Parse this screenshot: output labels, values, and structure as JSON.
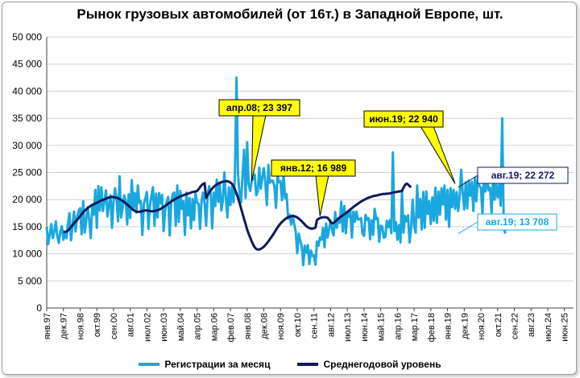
{
  "chart_data": {
    "type": "line",
    "title": "Рынок грузовых автомобилей (от 16т.) в Западной Европе, шт.",
    "ylim": [
      0,
      50000
    ],
    "y_ticks": [
      "0",
      "5 000",
      "10 000",
      "15 000",
      "20 000",
      "25 000",
      "30 000",
      "35 000",
      "40 000",
      "45 000",
      "50 000"
    ],
    "x_start": "1997-01",
    "x_end": "2025-12",
    "x_tick_labels": [
      "янв.97",
      "дек.97",
      "ноя.98",
      "окт.99",
      "сен.00",
      "авг.01",
      "июл.02",
      "июн.03",
      "май.04",
      "апр.05",
      "мар.06",
      "фев.07",
      "янв.08",
      "дек.08",
      "ноя.09",
      "окт.10",
      "сен.11",
      "авг.12",
      "июл.13",
      "июн.14",
      "май.15",
      "апр.16",
      "мар.17",
      "фев.18",
      "янв.19",
      "дек.19",
      "ноя.20",
      "окт.21",
      "сен.22",
      "авг.23",
      "июл.24",
      "июн.25"
    ],
    "grid": true,
    "legend_position": "bottom",
    "series": [
      {
        "name": "Регистрации за месяц",
        "color": "#1aa7e0",
        "start": "1997-01",
        "values": [
          15000,
          11800,
          13500,
          15500,
          12900,
          14100,
          16000,
          13200,
          12000,
          14200,
          15100,
          12600,
          13900,
          12900,
          15600,
          17500,
          12500,
          15200,
          17800,
          14100,
          16800,
          17900,
          18400,
          13600,
          19700,
          13900,
          16200,
          18600,
          16200,
          12900,
          19100,
          17200,
          21800,
          14800,
          22500,
          18000,
          22300,
          17900,
          19800,
          21700,
          16900,
          19100,
          20800,
          14800,
          19700,
          22100,
          20000,
          16000,
          24300,
          16700,
          18400,
          20800,
          19800,
          15400,
          21000,
          16600,
          23600,
          18500,
          21200,
          17600,
          22600,
          19400,
          19700,
          13500,
          19200,
          20300,
          21400,
          14600,
          18900,
          20700,
          22300,
          15200,
          21100,
          16700,
          21200,
          19300,
          20900,
          14200,
          18000,
          19600,
          20500,
          13400,
          19400,
          21000,
          21300,
          15200,
          22600,
          15900,
          21600,
          18300,
          19700,
          13500,
          21300,
          17100,
          20300,
          14700,
          20100,
          16200,
          21200,
          19500,
          19200,
          14600,
          19800,
          21300,
          19300,
          15200,
          20800,
          22500,
          21200,
          14700,
          21300,
          18800,
          23700,
          19600,
          23000,
          18000,
          19800,
          25000,
          20400,
          16700,
          22300,
          19000,
          22400,
          19500,
          24800,
          42500,
          24700,
          21000,
          19500,
          24600,
          29200,
          20300,
          30600,
          22900,
          21600,
          23400,
          23900,
          24600,
          20800,
          21500,
          25900,
          22000,
          24100,
          25800,
          23100,
          19000,
          26400,
          23100,
          23500,
          23500,
          22400,
          18500,
          24500,
          23200,
          23400,
          19900,
          24600,
          20300,
          21000,
          16500,
          17200,
          15400,
          17100,
          15500,
          14100,
          10100,
          13700,
          12400,
          11400,
          7900,
          11500,
          10200,
          11600,
          8100,
          10600,
          9600,
          9700,
          8000,
          12300,
          11500,
          13000,
          12600,
          14800,
          11200,
          15600,
          13000,
          14600,
          16100,
          14300,
          13400,
          17700,
          14800,
          16600,
          15700,
          19600,
          14100,
          18800,
          13800,
          17600,
          16800,
          18000,
          13000,
          17800,
          15900,
          17800,
          16300,
          16400,
          16600,
          13800,
          13300,
          17200,
          16300,
          16600,
          12700,
          16200,
          13500,
          18300,
          16400,
          16600,
          12200,
          15200,
          15000,
          13000,
          13100,
          16100,
          14900,
          16200,
          13800,
          28700,
          14200,
          15800,
          12600,
          15300,
          12100,
          21500,
          13900,
          17000,
          16000,
          17100,
          12100,
          14700,
          20000,
          15200,
          13900,
          22600,
          16700,
          20100,
          14500,
          21400,
          14800,
          21500,
          17400,
          19700,
          15500,
          20400,
          16100,
          22200,
          15700,
          21500,
          17200,
          22100,
          19100,
          22600,
          16300,
          21800,
          15000,
          22100,
          18600,
          21800,
          18300,
          21400,
          17900,
          20700,
          25500,
          21300,
          18200,
          23200,
          18400,
          23500,
          20700,
          23300,
          17900,
          24000,
          19700,
          24200,
          22500,
          22200,
          17300,
          25100,
          21500,
          24500,
          21700,
          22200,
          17600,
          23500,
          20000,
          23000,
          20400,
          22700,
          18900,
          35000,
          15300,
          13708
        ]
      },
      {
        "name": "Среднегодовой уровень",
        "color": "#0e1a5c",
        "start": "1997-12",
        "values": [
          14100,
          14050,
          14100,
          14300,
          14600,
          14950,
          15300,
          15650,
          15950,
          16250,
          16600,
          16950,
          17300,
          17650,
          17950,
          18200,
          18450,
          18650,
          18850,
          19000,
          19150,
          19300,
          19400,
          19550,
          19700,
          19850,
          19950,
          20050,
          20150,
          20300,
          20400,
          20450,
          20500,
          20450,
          20400,
          20350,
          20250,
          20100,
          19950,
          19750,
          19550,
          19350,
          19100,
          18850,
          18600,
          18350,
          18100,
          17900,
          17800,
          17750,
          17750,
          17800,
          17900,
          17950,
          18000,
          18000,
          17950,
          17900,
          17850,
          17850,
          17900,
          17950,
          18050,
          18150,
          18300,
          18450,
          18650,
          18850,
          19050,
          19250,
          19450,
          19650,
          19850,
          20000,
          20150,
          20300,
          20450,
          20600,
          20700,
          20800,
          20900,
          21000,
          21100,
          21200,
          21300,
          21400,
          21450,
          21500,
          21600,
          21900,
          22300,
          22650,
          22900,
          23050,
          20300,
          20800,
          21300,
          21700,
          22050,
          22350,
          22600,
          22800,
          22950,
          23100,
          23200,
          23300,
          23350,
          23397,
          23400,
          23300,
          23150,
          22900,
          22500,
          21900,
          21100,
          20300,
          19400,
          18400,
          17400,
          16400,
          15500,
          14500,
          13700,
          13000,
          12300,
          11700,
          11200,
          10900,
          10800,
          10800,
          10900,
          11100,
          11300,
          11600,
          11950,
          12300,
          12700,
          13100,
          13500,
          13950,
          14400,
          14850,
          15250,
          15600,
          15900,
          16150,
          16400,
          16600,
          16750,
          16850,
          16950,
          16989,
          16950,
          16850,
          16700,
          16500,
          16250,
          16000,
          15700,
          15400,
          15100,
          14900,
          14750,
          14650,
          14650,
          14700,
          14850,
          16250,
          16450,
          16600,
          16700,
          16750,
          16750,
          16750,
          16650,
          16300,
          15850,
          15600,
          15700,
          15950,
          16200,
          16450,
          16700,
          16900,
          17100,
          17300,
          17500,
          17750,
          17950,
          18200,
          18400,
          18650,
          18850,
          19050,
          19250,
          19450,
          19650,
          19800,
          19950,
          20100,
          20250,
          20350,
          20450,
          20550,
          20650,
          20700,
          20750,
          20800,
          20900,
          20950,
          21000,
          21050,
          21050,
          21100,
          21100,
          21150,
          21200,
          21300,
          21350,
          21400,
          21450,
          21500,
          21550,
          21600,
          22200,
          22700,
          22940,
          22800,
          22500,
          22272
        ]
      }
    ],
    "annotations": [
      {
        "label": "апр.08;  23 397",
        "x": "2008-04",
        "y": 23397
      },
      {
        "label": "янв.12;  16 989",
        "x": "2012-01",
        "y": 16989
      },
      {
        "label": "июн.19;  22 940",
        "x": "2019-06",
        "y": 22940
      },
      {
        "label": "авг.19;  22 272",
        "x": "2019-08",
        "y": 22272
      },
      {
        "label": "авг.19; 13 708",
        "x": "2019-08",
        "y": 13708
      }
    ]
  }
}
